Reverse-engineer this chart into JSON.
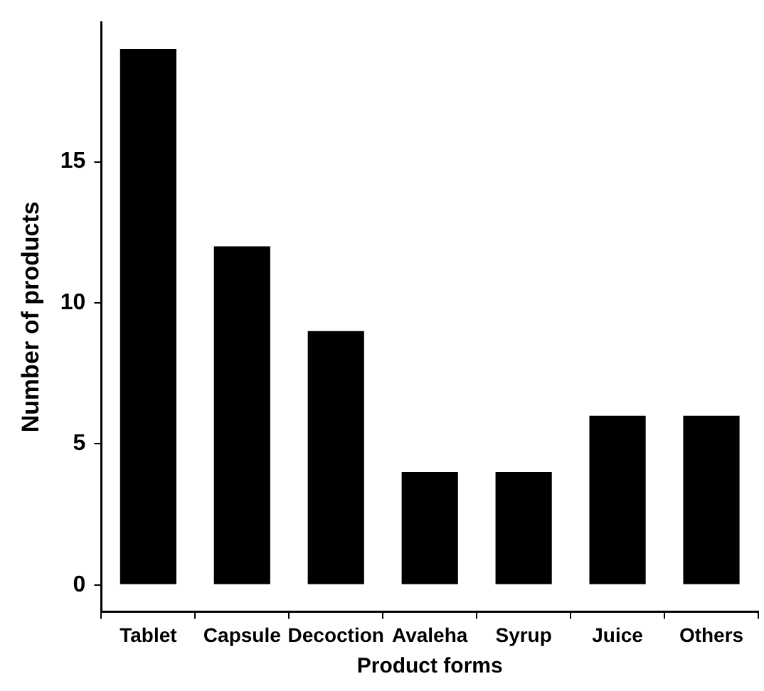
{
  "chart_data": {
    "type": "bar",
    "xlabel": "Product forms",
    "ylabel": "Number of products",
    "categories": [
      "Tablet",
      "Capsule",
      "Decoction",
      "Avaleha",
      "Syrup",
      "Juice",
      "Others"
    ],
    "values": [
      19,
      12,
      9,
      4,
      4,
      6,
      6
    ],
    "color": "#000000",
    "ylim": [
      -0.95,
      19.95
    ],
    "yticks": [
      0,
      5,
      10,
      15
    ],
    "grid": false,
    "legend": false
  }
}
